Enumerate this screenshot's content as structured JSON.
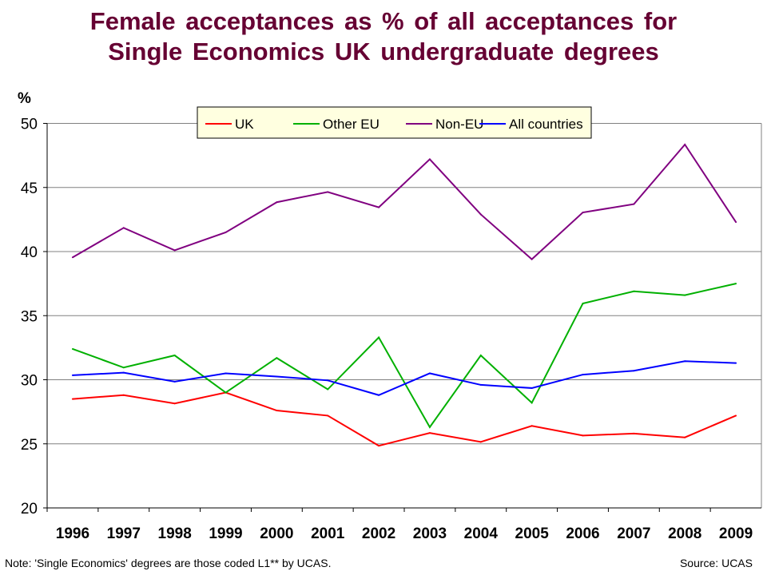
{
  "chart_data": {
    "type": "line",
    "title": [
      "Female acceptances as % of all acceptances for",
      "Single Economics UK undergraduate degrees"
    ],
    "ylabel": "%",
    "xlabel": "",
    "ylim": [
      20,
      50
    ],
    "yticks": [
      20,
      25,
      30,
      35,
      40,
      45,
      50
    ],
    "grid": true,
    "legend_position": "top",
    "categories": [
      "1996",
      "1997",
      "1998",
      "1999",
      "2000",
      "2001",
      "2002",
      "2003",
      "2004",
      "2005",
      "2006",
      "2007",
      "2008",
      "2009"
    ],
    "series": [
      {
        "name": "UK",
        "color": "#ff0000",
        "values": [
          28.5,
          28.8,
          28.15,
          29.0,
          27.6,
          27.2,
          24.85,
          25.85,
          25.15,
          26.4,
          25.65,
          25.8,
          25.5,
          27.2
        ]
      },
      {
        "name": "Other EU",
        "color": "#00b000",
        "values": [
          32.4,
          30.95,
          31.9,
          29.0,
          31.7,
          29.25,
          33.3,
          26.3,
          31.9,
          28.2,
          35.95,
          36.9,
          36.6,
          37.5
        ]
      },
      {
        "name": "Non-EU",
        "color": "#800080",
        "values": [
          39.55,
          41.85,
          40.1,
          41.5,
          43.85,
          44.65,
          43.45,
          47.2,
          42.9,
          39.4,
          43.05,
          43.7,
          48.35,
          42.3
        ]
      },
      {
        "name": "All countries",
        "color": "#0000ff",
        "values": [
          30.35,
          30.55,
          29.85,
          30.5,
          30.25,
          29.95,
          28.8,
          30.5,
          29.6,
          29.35,
          30.4,
          30.7,
          31.45,
          31.3
        ]
      }
    ]
  },
  "footnote": "Note: 'Single Economics' degrees are those coded L1** by UCAS.",
  "source": "Source: UCAS",
  "colors": {
    "title": "#660033",
    "legend_bg": "#ffffe0"
  }
}
